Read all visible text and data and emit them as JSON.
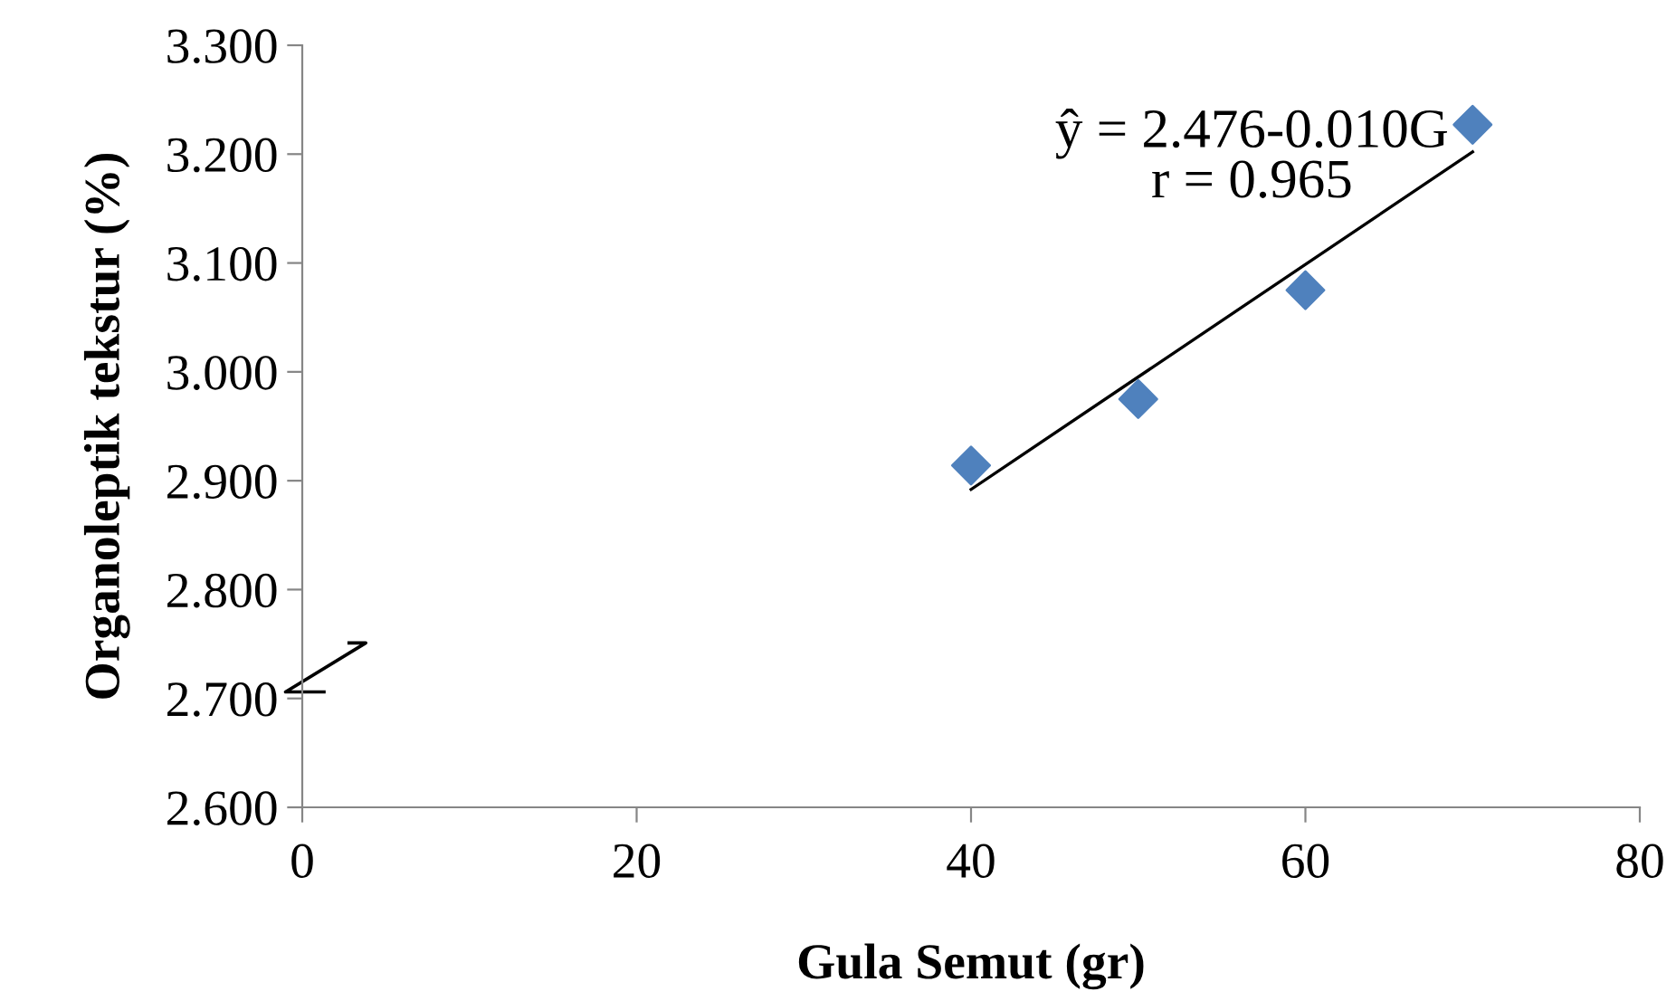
{
  "chart_data": {
    "type": "scatter",
    "xlabel": "Gula Semut (gr)",
    "ylabel": "Organoleptik tekstur (%)",
    "series": [
      {
        "color": "#4f81bd",
        "marker": "diamond",
        "x": [
          40,
          50,
          60,
          70
        ],
        "values": [
          2.914,
          2.975,
          3.075,
          3.227
        ]
      },
      {
        "type": "line",
        "color": "#000000",
        "marker": "none",
        "x": [
          40,
          70
        ],
        "values": [
          2.892,
          3.202
        ]
      }
    ],
    "annotations": [
      "ŷ = 2.476-0.010G\nr = 0.965"
    ],
    "xlim": [
      0,
      80
    ],
    "xticks": [
      0,
      20,
      40,
      60,
      80
    ],
    "ylim": [
      2.6,
      3.3
    ],
    "yticks": [
      {
        "value": 2.6,
        "label": "2.600"
      },
      {
        "value": 2.7,
        "label": "2.700"
      },
      {
        "value": 2.8,
        "label": "2.800"
      },
      {
        "value": 2.9,
        "label": "2.900"
      },
      {
        "value": 3.0,
        "label": "3.000"
      },
      {
        "value": 3.1,
        "label": "3.100"
      },
      {
        "value": 3.2,
        "label": "3.200"
      },
      {
        "value": 3.3,
        "label": "3.300"
      }
    ],
    "grid": false,
    "legend": false
  }
}
